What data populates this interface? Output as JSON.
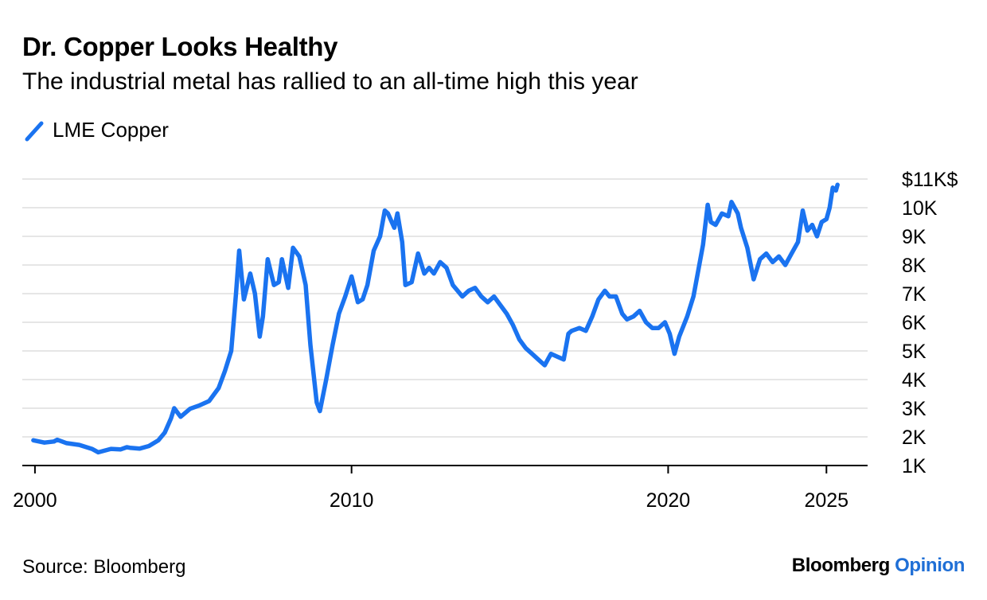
{
  "title": "Dr. Copper Looks Healthy",
  "subtitle": "The industrial metal has rallied to an all-time high this year",
  "legend": {
    "label": "LME Copper"
  },
  "source": "Source: Bloomberg",
  "brand": {
    "name": "Bloomberg",
    "section": "Opinion"
  },
  "colors": {
    "line": "#1a73f0",
    "grid": "#e6e6e6",
    "axis": "#000000",
    "brand_accent": "#1f6fd6"
  },
  "chart_data": {
    "type": "line",
    "title": "Dr. Copper Looks Healthy",
    "subtitle": "The industrial metal has rallied to an all-time high this year",
    "xlabel": "",
    "ylabel": "",
    "xlim": [
      1999.6,
      2026.3
    ],
    "ylim": [
      1000,
      11000
    ],
    "x_ticks": [
      2000,
      2010,
      2020,
      2025
    ],
    "x_tick_labels": [
      "2000",
      "2010",
      "2020",
      "2025"
    ],
    "y_ticks": [
      11000,
      10000,
      9000,
      8000,
      7000,
      6000,
      5000,
      4000,
      3000,
      2000,
      1000
    ],
    "y_tick_labels": [
      "$11K$",
      "10K",
      "9K",
      "8K",
      "7K",
      "6K",
      "5K",
      "4K",
      "3K",
      "2K",
      "1K"
    ],
    "grid": true,
    "legend_position": "top-left",
    "series": [
      {
        "name": "LME Copper",
        "x": [
          1999.95,
          2000.3,
          2000.6,
          2000.7,
          2001.0,
          2001.4,
          2001.8,
          2002.0,
          2002.4,
          2002.7,
          2002.9,
          2003.0,
          2003.3,
          2003.6,
          2003.9,
          2004.1,
          2004.3,
          2004.4,
          2004.6,
          2004.9,
          2005.2,
          2005.5,
          2005.8,
          2006.0,
          2006.2,
          2006.35,
          2006.45,
          2006.6,
          2006.8,
          2006.95,
          2007.1,
          2007.2,
          2007.35,
          2007.55,
          2007.7,
          2007.8,
          2008.0,
          2008.15,
          2008.35,
          2008.55,
          2008.7,
          2008.9,
          2009.0,
          2009.2,
          2009.4,
          2009.6,
          2009.8,
          2010.0,
          2010.2,
          2010.35,
          2010.5,
          2010.7,
          2010.9,
          2011.05,
          2011.15,
          2011.35,
          2011.45,
          2011.6,
          2011.7,
          2011.9,
          2012.1,
          2012.3,
          2012.45,
          2012.6,
          2012.8,
          2013.0,
          2013.2,
          2013.35,
          2013.5,
          2013.7,
          2013.9,
          2014.1,
          2014.3,
          2014.5,
          2014.7,
          2014.9,
          2015.1,
          2015.3,
          2015.5,
          2015.7,
          2015.9,
          2016.1,
          2016.3,
          2016.5,
          2016.7,
          2016.85,
          2016.95,
          2017.2,
          2017.4,
          2017.6,
          2017.8,
          2018.0,
          2018.15,
          2018.35,
          2018.55,
          2018.7,
          2018.9,
          2019.1,
          2019.3,
          2019.5,
          2019.7,
          2019.9,
          2020.05,
          2020.2,
          2020.35,
          2020.6,
          2020.8,
          2020.95,
          2021.1,
          2021.25,
          2021.35,
          2021.5,
          2021.7,
          2021.9,
          2022.0,
          2022.2,
          2022.3,
          2022.5,
          2022.7,
          2022.9,
          2023.1,
          2023.3,
          2023.5,
          2023.7,
          2023.9,
          2024.1,
          2024.25,
          2024.4,
          2024.55,
          2024.7,
          2024.85,
          2025.0,
          2025.1,
          2025.2,
          2025.3,
          2025.35
        ],
        "values": [
          1880,
          1800,
          1840,
          1900,
          1780,
          1720,
          1580,
          1460,
          1580,
          1560,
          1640,
          1620,
          1590,
          1680,
          1880,
          2150,
          2650,
          3000,
          2700,
          2980,
          3100,
          3250,
          3700,
          4300,
          5000,
          7000,
          8500,
          6800,
          7700,
          7000,
          5500,
          6200,
          8200,
          7300,
          7400,
          8200,
          7200,
          8600,
          8300,
          7300,
          5200,
          3200,
          2900,
          4000,
          5200,
          6300,
          6900,
          7600,
          6700,
          6800,
          7300,
          8500,
          9000,
          9900,
          9800,
          9300,
          9800,
          8800,
          7300,
          7400,
          8400,
          7700,
          7900,
          7700,
          8100,
          7900,
          7300,
          7100,
          6900,
          7100,
          7200,
          6900,
          6700,
          6900,
          6600,
          6300,
          5900,
          5400,
          5100,
          4900,
          4700,
          4500,
          4900,
          4800,
          4700,
          5600,
          5700,
          5800,
          5700,
          6200,
          6800,
          7100,
          6900,
          6900,
          6300,
          6100,
          6200,
          6400,
          6000,
          5800,
          5800,
          6000,
          5600,
          4900,
          5500,
          6200,
          6900,
          7800,
          8700,
          10100,
          9500,
          9400,
          9800,
          9700,
          10200,
          9800,
          9300,
          8600,
          7500,
          8200,
          8400,
          8100,
          8300,
          8000,
          8400,
          8800,
          9900,
          9200,
          9400,
          9000,
          9500,
          9600,
          10000,
          10700,
          10600,
          10800
        ]
      }
    ]
  }
}
